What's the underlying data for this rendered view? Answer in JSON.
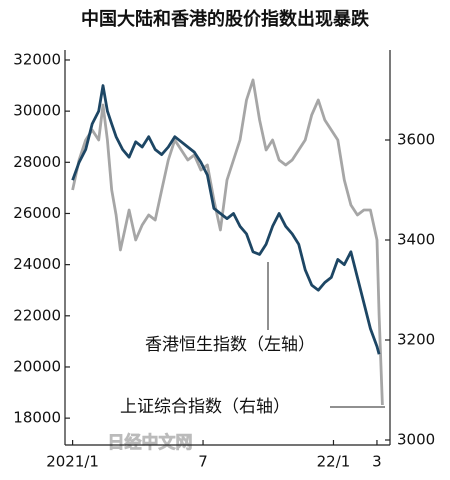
{
  "chart_data": {
    "type": "line",
    "title": "中国大陆和香港的股价指数出现暴跌",
    "watermark": "日经中文网",
    "xlim": [
      -0.35,
      14.6
    ],
    "xticks": [
      {
        "value": 0,
        "label": "2021/1"
      },
      {
        "value": 6,
        "label": "7"
      },
      {
        "value": 12,
        "label": "22/1"
      },
      {
        "value": 14,
        "label": "3"
      }
    ],
    "ylim": [
      16950,
      32390
    ],
    "yticks": [
      18000,
      20000,
      22000,
      24000,
      26000,
      28000,
      30000,
      32000
    ],
    "y2lim": [
      2990,
      3780
    ],
    "y2ticks": [
      3000,
      3200,
      3400,
      3600
    ],
    "series": [
      {
        "name": "香港恒生指数（左轴）",
        "color": "#1d4664",
        "axis": "y",
        "x": [
          0,
          0.3,
          0.6,
          0.9,
          1.2,
          1.4,
          1.6,
          1.8,
          2.0,
          2.3,
          2.6,
          2.9,
          3.2,
          3.5,
          3.8,
          4.1,
          4.4,
          4.7,
          5.0,
          5.3,
          5.6,
          5.9,
          6.2,
          6.5,
          6.8,
          7.1,
          7.4,
          7.7,
          8.0,
          8.3,
          8.6,
          8.9,
          9.2,
          9.5,
          9.8,
          10.1,
          10.4,
          10.7,
          11.0,
          11.3,
          11.6,
          11.9,
          12.2,
          12.5,
          12.8,
          13.1,
          13.4,
          13.7,
          14.0,
          14.1
        ],
        "values": [
          27300,
          28000,
          28500,
          29500,
          30000,
          31000,
          30000,
          29500,
          29000,
          28500,
          28200,
          28800,
          28600,
          29000,
          28500,
          28300,
          28600,
          29000,
          28800,
          28600,
          28400,
          28000,
          27500,
          26200,
          26000,
          25800,
          26000,
          25500,
          25200,
          24500,
          24400,
          24800,
          25500,
          26000,
          25500,
          25200,
          24800,
          23800,
          23200,
          23000,
          23300,
          23500,
          24200,
          24000,
          24500,
          23500,
          22500,
          21500,
          20800,
          20500
        ]
      },
      {
        "name": "上证综合指数（右轴）",
        "color": "#a6a6a6",
        "axis": "y2",
        "x": [
          0,
          0.3,
          0.6,
          0.9,
          1.2,
          1.4,
          1.6,
          1.8,
          2.0,
          2.2,
          2.4,
          2.6,
          2.9,
          3.2,
          3.5,
          3.8,
          4.1,
          4.4,
          4.7,
          5.0,
          5.3,
          5.6,
          5.9,
          6.2,
          6.5,
          6.8,
          7.1,
          7.4,
          7.7,
          8.0,
          8.3,
          8.6,
          8.9,
          9.2,
          9.5,
          9.8,
          10.1,
          10.4,
          10.7,
          11.0,
          11.3,
          11.6,
          11.9,
          12.2,
          12.5,
          12.8,
          13.1,
          13.4,
          13.7,
          14.0,
          14.1,
          14.25
        ],
        "values": [
          3500,
          3560,
          3600,
          3620,
          3600,
          3670,
          3600,
          3500,
          3450,
          3380,
          3420,
          3460,
          3400,
          3430,
          3450,
          3440,
          3500,
          3560,
          3600,
          3580,
          3560,
          3570,
          3540,
          3550,
          3480,
          3420,
          3520,
          3560,
          3600,
          3680,
          3720,
          3640,
          3580,
          3600,
          3560,
          3550,
          3560,
          3580,
          3600,
          3650,
          3680,
          3640,
          3620,
          3600,
          3520,
          3470,
          3450,
          3460,
          3460,
          3400,
          3250,
          3070
        ]
      }
    ]
  }
}
